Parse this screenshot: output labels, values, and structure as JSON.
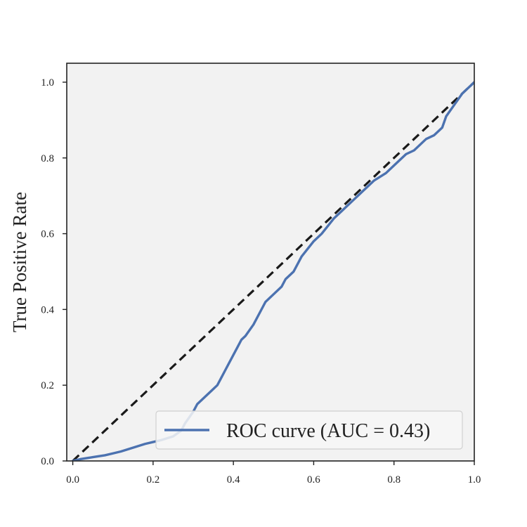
{
  "chart_data": {
    "type": "line",
    "title": "",
    "xlabel": "",
    "ylabel": "True Positive Rate",
    "xlim": [
      -0.015,
      1.0
    ],
    "ylim": [
      0.0,
      1.05
    ],
    "x_ticks": [
      "0.0",
      "0.2",
      "0.4",
      "0.6",
      "0.8",
      "1.0"
    ],
    "y_ticks": [
      "0.0",
      "0.2",
      "0.4",
      "0.6",
      "0.8",
      "1.0"
    ],
    "grid": false,
    "legend_position": "lower-right",
    "background_color": "#f2f2f2",
    "series": [
      {
        "name": "ROC curve (AUC = 0.43)",
        "color": "#4c72b0",
        "style": "solid",
        "x": [
          0.0,
          0.02,
          0.05,
          0.08,
          0.1,
          0.12,
          0.15,
          0.18,
          0.2,
          0.22,
          0.25,
          0.27,
          0.28,
          0.3,
          0.31,
          0.32,
          0.33,
          0.35,
          0.36,
          0.37,
          0.38,
          0.39,
          0.4,
          0.41,
          0.42,
          0.43,
          0.45,
          0.47,
          0.48,
          0.5,
          0.52,
          0.53,
          0.55,
          0.57,
          0.6,
          0.62,
          0.65,
          0.67,
          0.7,
          0.72,
          0.75,
          0.78,
          0.8,
          0.82,
          0.83,
          0.85,
          0.87,
          0.88,
          0.9,
          0.92,
          0.93,
          0.95,
          0.97,
          0.99,
          1.0
        ],
        "y": [
          0.0,
          0.005,
          0.01,
          0.015,
          0.02,
          0.025,
          0.035,
          0.045,
          0.05,
          0.055,
          0.065,
          0.08,
          0.1,
          0.13,
          0.15,
          0.16,
          0.17,
          0.19,
          0.2,
          0.22,
          0.24,
          0.26,
          0.28,
          0.3,
          0.32,
          0.33,
          0.36,
          0.4,
          0.42,
          0.44,
          0.46,
          0.48,
          0.5,
          0.54,
          0.58,
          0.6,
          0.64,
          0.66,
          0.69,
          0.71,
          0.74,
          0.76,
          0.78,
          0.8,
          0.81,
          0.82,
          0.84,
          0.85,
          0.86,
          0.88,
          0.91,
          0.94,
          0.97,
          0.99,
          1.0
        ]
      },
      {
        "name": "",
        "color": "#1a1a1a",
        "style": "dashed",
        "x": [
          0.0,
          1.0
        ],
        "y": [
          0.0,
          1.0
        ]
      }
    ]
  }
}
